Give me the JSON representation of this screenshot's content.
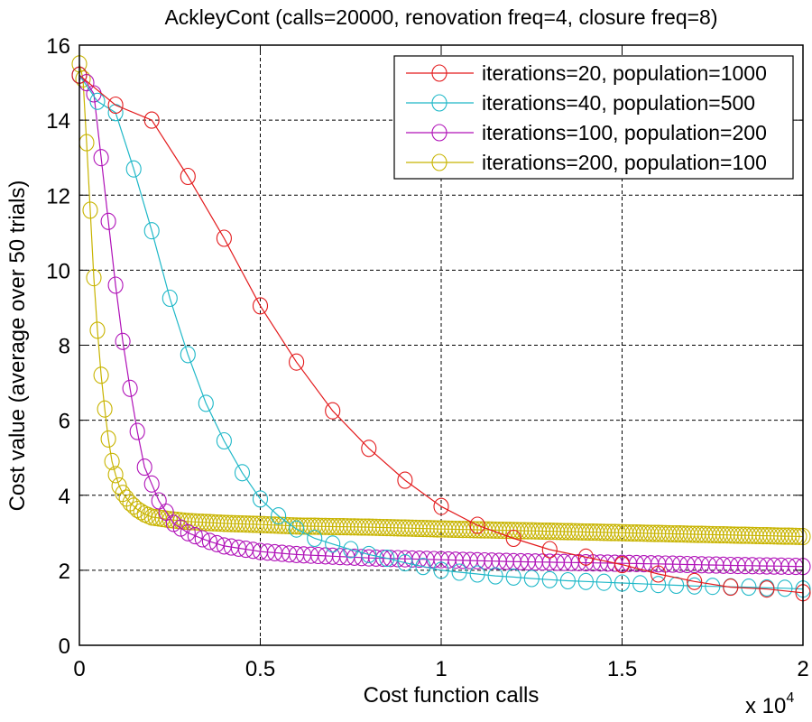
{
  "chart_data": {
    "type": "line",
    "title": "AckleyCont (calls=20000, renovation freq=4, closure freq=8)",
    "xlabel": "Cost function calls",
    "ylabel": "Cost value (average over 50 trials)",
    "x_multiplier": "x 10",
    "x_multiplier_exp": "4",
    "xlim": [
      0,
      20000
    ],
    "ylim": [
      0,
      16
    ],
    "xticks": [
      0,
      5000,
      10000,
      15000,
      20000
    ],
    "xtick_labels": [
      "0",
      "0.5",
      "1",
      "1.5",
      "2"
    ],
    "yticks": [
      0,
      2,
      4,
      6,
      8,
      10,
      12,
      14,
      16
    ],
    "ytick_labels": [
      "0",
      "2",
      "4",
      "6",
      "8",
      "10",
      "12",
      "14",
      "16"
    ],
    "grid": true,
    "legend_position": "top-right",
    "series": [
      {
        "name": "iterations=20, population=1000",
        "color": "#e31a1c",
        "marker": "circle",
        "x": [
          0,
          1000,
          2000,
          3000,
          4000,
          5000,
          6000,
          7000,
          8000,
          9000,
          10000,
          11000,
          12000,
          13000,
          14000,
          15000,
          16000,
          17000,
          18000,
          19000,
          20000
        ],
        "y": [
          15.2,
          14.4,
          14.0,
          12.5,
          10.85,
          9.05,
          7.55,
          6.25,
          5.25,
          4.4,
          3.7,
          3.2,
          2.85,
          2.55,
          2.35,
          2.15,
          1.9,
          1.7,
          1.55,
          1.5,
          1.4
        ]
      },
      {
        "name": "iterations=40, population=500",
        "color": "#1fb8c8",
        "marker": "circle",
        "x": [
          0,
          500,
          1000,
          1500,
          2000,
          2500,
          3000,
          3500,
          4000,
          4500,
          5000,
          5500,
          6000,
          6500,
          7000,
          7500,
          8000,
          8500,
          9000,
          9500,
          10000,
          10500,
          11000,
          11500,
          12000,
          12500,
          13000,
          13500,
          14000,
          14500,
          15000,
          15500,
          16000,
          16500,
          17000,
          17500,
          18000,
          18500,
          19000,
          19500,
          20000
        ],
        "y": [
          15.2,
          14.5,
          14.2,
          12.7,
          11.05,
          9.25,
          7.75,
          6.45,
          5.45,
          4.6,
          3.9,
          3.45,
          3.1,
          2.85,
          2.7,
          2.55,
          2.42,
          2.32,
          2.2,
          2.1,
          2.0,
          1.95,
          1.9,
          1.85,
          1.82,
          1.78,
          1.75,
          1.72,
          1.7,
          1.68,
          1.66,
          1.64,
          1.62,
          1.6,
          1.58,
          1.57,
          1.56,
          1.55,
          1.53,
          1.52,
          1.5
        ]
      },
      {
        "name": "iterations=100, population=200",
        "color": "#b012b8",
        "marker": "circle",
        "x": [
          0,
          200,
          400,
          600,
          800,
          1000,
          1200,
          1400,
          1600,
          1800,
          2000,
          2200,
          2400,
          2600,
          3000,
          3500,
          4000,
          5000,
          6000,
          8000,
          10000,
          12000,
          14000,
          16000,
          18000,
          20000
        ],
        "y": [
          15.2,
          15.0,
          14.7,
          13.0,
          11.3,
          9.6,
          8.1,
          6.85,
          5.7,
          4.75,
          4.3,
          3.85,
          3.55,
          3.25,
          3.0,
          2.8,
          2.65,
          2.5,
          2.42,
          2.33,
          2.28,
          2.23,
          2.2,
          2.17,
          2.13,
          2.1
        ]
      },
      {
        "name": "iterations=200, population=100",
        "color": "#c8b400",
        "marker": "circle",
        "x": [
          0,
          100,
          200,
          300,
          400,
          500,
          600,
          700,
          800,
          900,
          1000,
          1100,
          1200,
          1400,
          1600,
          1800,
          2000,
          2500,
          3000,
          4000,
          5000,
          6000,
          8000,
          10000,
          12000,
          14000,
          16000,
          18000,
          20000
        ],
        "y": [
          15.5,
          15.1,
          13.4,
          11.6,
          9.8,
          8.4,
          7.2,
          6.3,
          5.5,
          4.9,
          4.55,
          4.25,
          4.05,
          3.8,
          3.62,
          3.5,
          3.42,
          3.35,
          3.3,
          3.25,
          3.22,
          3.18,
          3.15,
          3.1,
          3.06,
          3.02,
          2.98,
          2.94,
          2.9
        ]
      }
    ]
  }
}
